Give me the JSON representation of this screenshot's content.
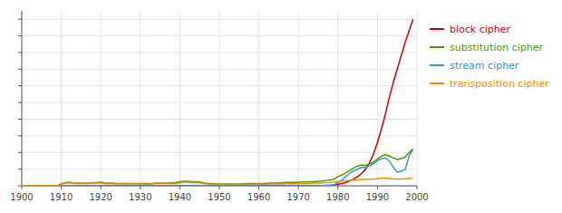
{
  "chart_data": {
    "type": "line",
    "x": [
      1900,
      1901,
      1902,
      1903,
      1904,
      1905,
      1906,
      1907,
      1908,
      1909,
      1910,
      1911,
      1912,
      1913,
      1914,
      1915,
      1916,
      1917,
      1918,
      1919,
      1920,
      1921,
      1922,
      1923,
      1924,
      1925,
      1926,
      1927,
      1928,
      1929,
      1930,
      1931,
      1932,
      1933,
      1934,
      1935,
      1936,
      1937,
      1938,
      1939,
      1940,
      1941,
      1942,
      1943,
      1944,
      1945,
      1946,
      1947,
      1948,
      1949,
      1950,
      1951,
      1952,
      1953,
      1954,
      1955,
      1956,
      1957,
      1958,
      1959,
      1960,
      1961,
      1962,
      1963,
      1964,
      1965,
      1966,
      1967,
      1968,
      1969,
      1970,
      1971,
      1972,
      1973,
      1974,
      1975,
      1976,
      1977,
      1978,
      1979,
      1980,
      1981,
      1982,
      1983,
      1984,
      1985,
      1986,
      1987,
      1988,
      1989,
      1990,
      1991,
      1992,
      1993,
      1994,
      1995,
      1996,
      1997,
      1998,
      1999
    ],
    "series": [
      {
        "name": "block cipher",
        "color": "#cc0000",
        "values": [
          0.0,
          0.0,
          0.0,
          0.0,
          0.0,
          0.0,
          0.0,
          0.0,
          0.0,
          0.0,
          0.0,
          0.0,
          0.0,
          0.0,
          0.0,
          0.0,
          0.0,
          0.0,
          0.0,
          0.0,
          0.0,
          0.0,
          0.0,
          0.0,
          0.0,
          0.0,
          0.0,
          0.0,
          0.0,
          0.0,
          0.0,
          0.0,
          0.0,
          0.0,
          0.0,
          0.0,
          0.0,
          0.0,
          0.0,
          0.0,
          0.0,
          0.0,
          0.0,
          0.0,
          0.0,
          0.0,
          0.0,
          0.0,
          0.0,
          0.0,
          0.0,
          0.0,
          0.0,
          0.0,
          0.0,
          0.0,
          0.0,
          0.0,
          0.0,
          0.0,
          0.0,
          0.0,
          0.0,
          0.0,
          0.0,
          0.0,
          0.0,
          0.0,
          0.0,
          0.0,
          0.0,
          0.0,
          0.001,
          0.001,
          0.001,
          0.002,
          0.002,
          0.003,
          0.004,
          0.006,
          0.01,
          0.014,
          0.02,
          0.03,
          0.04,
          0.055,
          0.075,
          0.1,
          0.14,
          0.19,
          0.26,
          0.34,
          0.43,
          0.53,
          0.62,
          0.7,
          0.78,
          0.86,
          0.93,
          1.0
        ]
      },
      {
        "name": "substitution cipher",
        "color": "#4d9900",
        "values": [
          0.0,
          0.0,
          0.0,
          0.0,
          0.0,
          0.0,
          0.0,
          0.0,
          0.0,
          0.0,
          0.012,
          0.019,
          0.022,
          0.018,
          0.016,
          0.016,
          0.016,
          0.017,
          0.019,
          0.019,
          0.022,
          0.018,
          0.016,
          0.016,
          0.014,
          0.014,
          0.014,
          0.014,
          0.014,
          0.014,
          0.014,
          0.013,
          0.013,
          0.014,
          0.016,
          0.016,
          0.016,
          0.016,
          0.018,
          0.02,
          0.025,
          0.027,
          0.027,
          0.025,
          0.025,
          0.023,
          0.018,
          0.014,
          0.013,
          0.012,
          0.011,
          0.011,
          0.011,
          0.011,
          0.011,
          0.011,
          0.012,
          0.013,
          0.013,
          0.014,
          0.014,
          0.014,
          0.015,
          0.016,
          0.017,
          0.018,
          0.019,
          0.021,
          0.021,
          0.021,
          0.022,
          0.023,
          0.023,
          0.024,
          0.025,
          0.027,
          0.029,
          0.032,
          0.035,
          0.04,
          0.055,
          0.065,
          0.078,
          0.092,
          0.108,
          0.118,
          0.125,
          0.122,
          0.132,
          0.142,
          0.162,
          0.178,
          0.188,
          0.178,
          0.168,
          0.158,
          0.163,
          0.173,
          0.198,
          0.222
        ]
      },
      {
        "name": "stream cipher",
        "color": "#3399cc",
        "values": [
          0.0,
          0.0,
          0.0,
          0.0,
          0.0,
          0.0,
          0.0,
          0.0,
          0.0,
          0.0,
          0.0,
          0.0,
          0.0,
          0.0,
          0.0,
          0.0,
          0.0,
          0.0,
          0.0,
          0.0,
          0.0,
          0.0,
          0.0,
          0.0,
          0.0,
          0.0,
          0.0,
          0.0,
          0.0,
          0.0,
          0.0,
          0.0,
          0.0,
          0.0,
          0.0,
          0.0,
          0.0,
          0.0,
          0.0,
          0.0,
          0.0,
          0.0,
          0.0,
          0.0,
          0.0,
          0.0,
          0.0,
          0.0,
          0.0,
          0.0,
          0.0,
          0.0,
          0.0,
          0.0,
          0.0,
          0.0,
          0.0,
          0.0,
          0.0,
          0.0,
          0.0,
          0.0,
          0.0,
          0.0,
          0.0,
          0.0,
          0.0,
          0.0,
          0.0,
          0.0,
          0.0,
          0.0,
          0.0,
          0.0,
          0.0,
          0.0,
          0.001,
          0.001,
          0.002,
          0.005,
          0.02,
          0.035,
          0.055,
          0.075,
          0.09,
          0.1,
          0.11,
          0.11,
          0.12,
          0.132,
          0.152,
          0.162,
          0.168,
          0.148,
          0.112,
          0.082,
          0.088,
          0.098,
          0.178,
          0.218
        ]
      },
      {
        "name": "transposition cipher",
        "color": "#ff8800",
        "values": [
          0.0,
          0.0,
          0.0,
          0.0,
          0.0,
          0.0,
          0.0,
          0.0,
          0.0,
          0.0,
          0.01,
          0.016,
          0.018,
          0.016,
          0.014,
          0.014,
          0.014,
          0.014,
          0.016,
          0.016,
          0.016,
          0.014,
          0.012,
          0.012,
          0.011,
          0.011,
          0.011,
          0.011,
          0.011,
          0.011,
          0.011,
          0.01,
          0.01,
          0.011,
          0.012,
          0.013,
          0.013,
          0.013,
          0.014,
          0.014,
          0.018,
          0.02,
          0.02,
          0.019,
          0.019,
          0.018,
          0.014,
          0.011,
          0.01,
          0.009,
          0.008,
          0.008,
          0.008,
          0.008,
          0.008,
          0.008,
          0.009,
          0.009,
          0.009,
          0.01,
          0.01,
          0.01,
          0.01,
          0.011,
          0.011,
          0.011,
          0.011,
          0.012,
          0.012,
          0.012,
          0.013,
          0.014,
          0.014,
          0.015,
          0.016,
          0.017,
          0.018,
          0.019,
          0.02,
          0.022,
          0.026,
          0.028,
          0.03,
          0.033,
          0.035,
          0.036,
          0.038,
          0.038,
          0.04,
          0.041,
          0.043,
          0.046,
          0.046,
          0.044,
          0.042,
          0.04,
          0.041,
          0.042,
          0.044,
          0.046
        ]
      }
    ],
    "xlim": [
      1900,
      2000
    ],
    "xticks": [
      1900,
      1910,
      1920,
      1930,
      1940,
      1950,
      1960,
      1970,
      1980,
      1990,
      2000
    ],
    "ylim": [
      0,
      1.05
    ],
    "yticks": [
      0.0,
      0.1,
      0.2,
      0.3,
      0.4,
      0.5,
      0.6,
      0.7,
      0.8,
      0.9,
      1.0
    ],
    "grid": true,
    "tick_labels": "x",
    "legend": "right"
  }
}
